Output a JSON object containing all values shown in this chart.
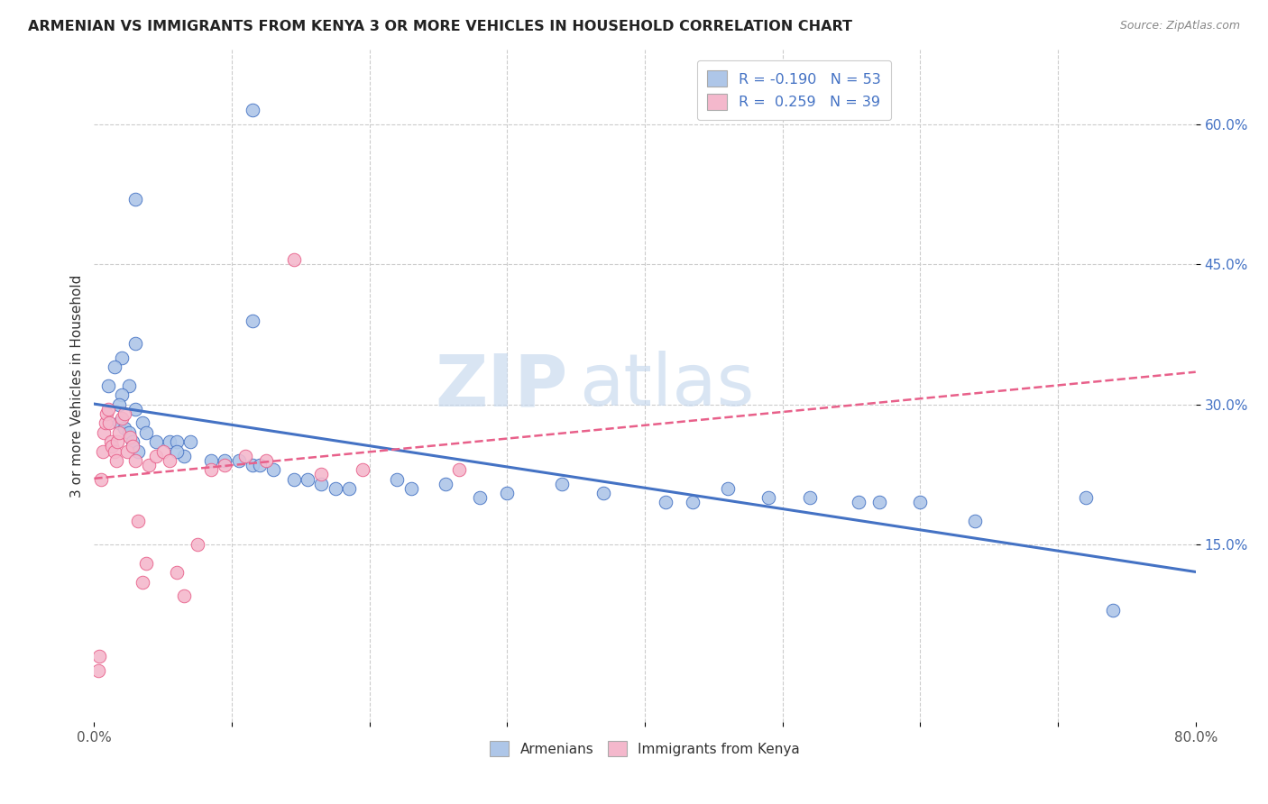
{
  "title": "ARMENIAN VS IMMIGRANTS FROM KENYA 3 OR MORE VEHICLES IN HOUSEHOLD CORRELATION CHART",
  "source": "Source: ZipAtlas.com",
  "ylabel": "3 or more Vehicles in Household",
  "xlim": [
    0.0,
    0.8
  ],
  "ylim": [
    -0.04,
    0.68
  ],
  "ytick_positions": [
    0.15,
    0.3,
    0.45,
    0.6
  ],
  "ytick_labels": [
    "15.0%",
    "30.0%",
    "45.0%",
    "60.0%"
  ],
  "legend_R1": "-0.190",
  "legend_N1": "53",
  "legend_R2": "0.259",
  "legend_N2": "39",
  "color_armenian": "#aec6e8",
  "color_kenya": "#f4b8cc",
  "line_color_armenian": "#4472c4",
  "line_color_kenya": "#e8608a",
  "armenian_x": [
    0.115,
    0.03,
    0.115,
    0.03,
    0.02,
    0.015,
    0.01,
    0.025,
    0.02,
    0.018,
    0.03,
    0.035,
    0.018,
    0.022,
    0.025,
    0.038,
    0.045,
    0.028,
    0.032,
    0.055,
    0.06,
    0.065,
    0.07,
    0.06,
    0.085,
    0.095,
    0.105,
    0.115,
    0.12,
    0.13,
    0.145,
    0.155,
    0.165,
    0.175,
    0.185,
    0.22,
    0.23,
    0.255,
    0.28,
    0.3,
    0.34,
    0.37,
    0.415,
    0.435,
    0.46,
    0.49,
    0.52,
    0.555,
    0.57,
    0.6,
    0.64,
    0.72,
    0.74
  ],
  "armenian_y": [
    0.615,
    0.52,
    0.39,
    0.365,
    0.35,
    0.34,
    0.32,
    0.32,
    0.31,
    0.3,
    0.295,
    0.28,
    0.28,
    0.275,
    0.27,
    0.27,
    0.26,
    0.26,
    0.25,
    0.26,
    0.26,
    0.245,
    0.26,
    0.25,
    0.24,
    0.24,
    0.24,
    0.235,
    0.235,
    0.23,
    0.22,
    0.22,
    0.215,
    0.21,
    0.21,
    0.22,
    0.21,
    0.215,
    0.2,
    0.205,
    0.215,
    0.205,
    0.195,
    0.195,
    0.21,
    0.2,
    0.2,
    0.195,
    0.195,
    0.195,
    0.175,
    0.2,
    0.08
  ],
  "kenya_x": [
    0.003,
    0.004,
    0.005,
    0.006,
    0.007,
    0.008,
    0.009,
    0.01,
    0.011,
    0.012,
    0.013,
    0.015,
    0.016,
    0.017,
    0.018,
    0.02,
    0.022,
    0.024,
    0.026,
    0.028,
    0.03,
    0.032,
    0.035,
    0.038,
    0.04,
    0.045,
    0.05,
    0.055,
    0.06,
    0.065,
    0.075,
    0.085,
    0.095,
    0.11,
    0.125,
    0.145,
    0.165,
    0.195,
    0.265
  ],
  "kenya_y": [
    0.015,
    0.03,
    0.22,
    0.25,
    0.27,
    0.28,
    0.29,
    0.295,
    0.28,
    0.26,
    0.255,
    0.25,
    0.24,
    0.26,
    0.27,
    0.285,
    0.29,
    0.25,
    0.265,
    0.255,
    0.24,
    0.175,
    0.11,
    0.13,
    0.235,
    0.245,
    0.25,
    0.24,
    0.12,
    0.095,
    0.15,
    0.23,
    0.235,
    0.245,
    0.24,
    0.455,
    0.225,
    0.23,
    0.23
  ]
}
